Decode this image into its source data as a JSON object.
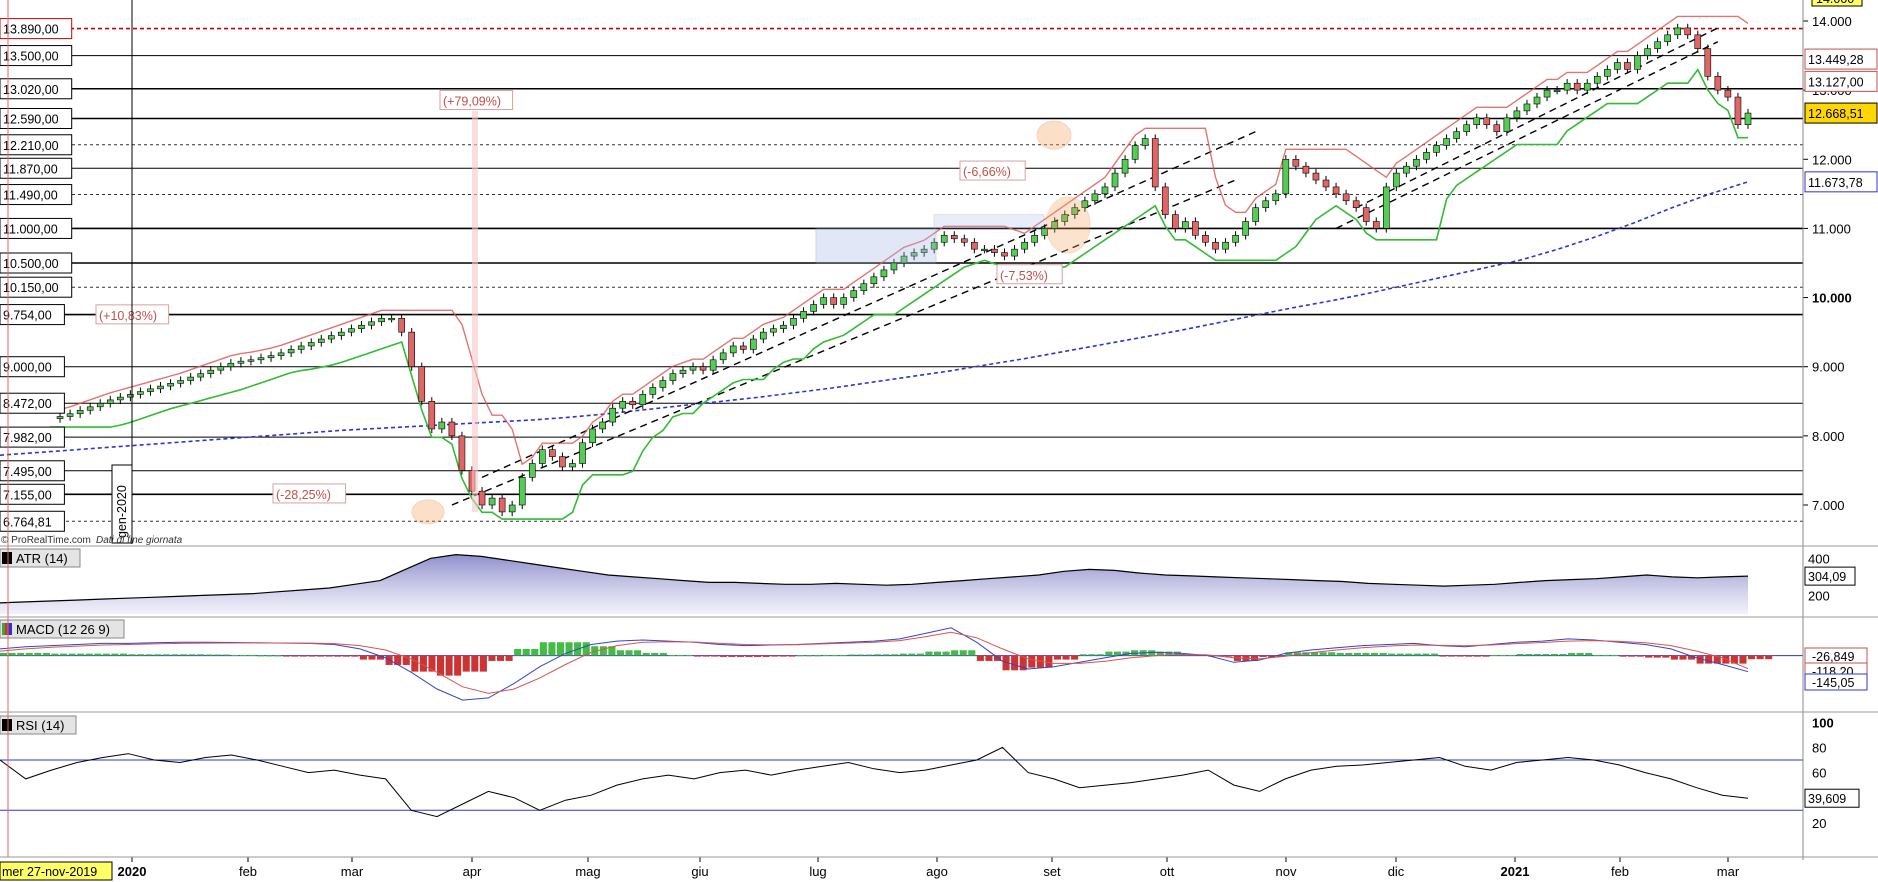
{
  "watermark": "© ProRealTime.com",
  "data_type": "Dati di fine giornata",
  "chart_data": {
    "type": "candlestick",
    "time_range": [
      "2019-11-27",
      "2021-03-05"
    ],
    "x_tick_labels": [
      "2020",
      "feb",
      "mar",
      "apr",
      "mag",
      "giu",
      "lug",
      "ago",
      "set",
      "ott",
      "nov",
      "dic",
      "2021",
      "feb",
      "mar"
    ],
    "x_tick_bold": [
      "2020",
      "2021"
    ],
    "cursor_label": "mer 27-nov-2019",
    "vertical_marker": "gen-2020",
    "price_axis": {
      "ylim": [
        6600,
        14100
      ],
      "tick_labels": [
        "14.000",
        "13.000",
        "12.000",
        "11.000",
        "10.000",
        "9.000",
        "8.000",
        "7.000"
      ],
      "tick_values": [
        14000,
        13000,
        12000,
        11000,
        10000,
        9000,
        8000,
        7000
      ],
      "top_clipped_label": "14.000"
    },
    "levels": [
      {
        "label": "13.890,00",
        "value": 13890,
        "style": "red-dashed"
      },
      {
        "label": "13.500,00",
        "value": 13500,
        "style": "solid-thin"
      },
      {
        "label": "13.020,00",
        "value": 13020,
        "style": "solid"
      },
      {
        "label": "12.590,00",
        "value": 12590,
        "style": "solid"
      },
      {
        "label": "12.210,00",
        "value": 12210,
        "style": "dashed"
      },
      {
        "label": "11.870,00",
        "value": 11870,
        "style": "solid-thin"
      },
      {
        "label": "11.490,00",
        "value": 11490,
        "style": "dashed"
      },
      {
        "label": "11.000,00",
        "value": 11000,
        "style": "solid"
      },
      {
        "label": "10.500,00",
        "value": 10500,
        "style": "solid"
      },
      {
        "label": "10.150,00",
        "value": 10150,
        "style": "dashed"
      },
      {
        "label": "9.754,00",
        "value": 9754,
        "style": "solid"
      },
      {
        "label": "9.000,00",
        "value": 9000,
        "style": "solid-thin"
      },
      {
        "label": "8.472,00",
        "value": 8472,
        "style": "solid-thin"
      },
      {
        "label": "7.982,00",
        "value": 7982,
        "style": "solid-thin"
      },
      {
        "label": "7.495,00",
        "value": 7495,
        "style": "solid-thin"
      },
      {
        "label": "7.155,00",
        "value": 7155,
        "style": "solid"
      },
      {
        "label": "6.764,81",
        "value": 6764.81,
        "style": "dashed"
      }
    ],
    "right_value_tags": [
      {
        "label": "13.449,28",
        "value": 13449.28,
        "color": "#c0504d"
      },
      {
        "label": "13.127,00",
        "value": 13127,
        "color": "#c0504d"
      },
      {
        "label": "12.668,51",
        "value": 12668.51,
        "color": "#000000",
        "bg": "#ffd700"
      },
      {
        "label": "11.673,78",
        "value": 11673.78,
        "color": "#3333cc"
      }
    ],
    "annotations": [
      "(+79,09%)",
      "(+10,83%)",
      "(-28,25%)",
      "(-6,66%)",
      "(-7,53%)"
    ],
    "close_series": [
      8250,
      8280,
      8320,
      8370,
      8420,
      8470,
      8520,
      8560,
      8600,
      8640,
      8680,
      8720,
      8760,
      8800,
      8850,
      8900,
      8950,
      9000,
      9050,
      9080,
      9100,
      9130,
      9160,
      9200,
      9250,
      9300,
      9350,
      9400,
      9450,
      9500,
      9550,
      9600,
      9650,
      9700,
      9700,
      9500,
      9000,
      8500,
      8100,
      8200,
      8000,
      7500,
      7200,
      7000,
      7100,
      6900,
      7000,
      7400,
      7600,
      7800,
      7700,
      7550,
      7600,
      7900,
      8100,
      8200,
      8400,
      8500,
      8450,
      8600,
      8700,
      8800,
      8900,
      8950,
      9000,
      8950,
      9100,
      9200,
      9300,
      9250,
      9400,
      9500,
      9550,
      9600,
      9700,
      9800,
      9900,
      10000,
      9900,
      10000,
      10100,
      10200,
      10300,
      10400,
      10500,
      10600,
      10650,
      10700,
      10800,
      10900,
      10850,
      10800,
      10700,
      10700,
      10650,
      10600,
      10700,
      10800,
      10900,
      11000,
      11100,
      11200,
      11300,
      11400,
      11500,
      11600,
      11800,
      12000,
      12200,
      12300,
      11600,
      11200,
      11000,
      11100,
      10900,
      10800,
      10700,
      10800,
      10900,
      11100,
      11300,
      11400,
      11500,
      12000,
      11900,
      11800,
      11700,
      11600,
      11500,
      11400,
      11300,
      11100,
      11000,
      11600,
      11800,
      11900,
      12000,
      12100,
      12200,
      12300,
      12400,
      12500,
      12600,
      12500,
      12400,
      12600,
      12700,
      12800,
      12900,
      13000,
      13000,
      13100,
      13000,
      13100,
      13200,
      13300,
      13400,
      13300,
      13500,
      13600,
      13700,
      13800,
      13900,
      13800,
      13600,
      13200,
      13000,
      12900,
      12500,
      12668.51
    ],
    "ema_series_label": "dashed-blue long moving average",
    "ema_values": [
      7720,
      7760,
      7800,
      7840,
      7880,
      7920,
      7960,
      8000,
      8040,
      8080,
      8110,
      8140,
      8170,
      8200,
      8230,
      8270,
      8320,
      8380,
      8440,
      8500,
      8560,
      8630,
      8700,
      8780,
      8860,
      8940,
      9030,
      9120,
      9220,
      9320,
      9420,
      9520,
      9630,
      9740,
      9850,
      9950,
      10060,
      10180,
      10300,
      10420,
      10540,
      10700,
      10880,
      11080,
      11300,
      11500,
      11673.78
    ]
  },
  "atr": {
    "title": "ATR (14)",
    "ticks": [
      "400",
      "200"
    ],
    "tick_values": [
      400,
      200
    ],
    "ylim": [
      100,
      450
    ],
    "value_label": "304,09",
    "values": [
      160,
      165,
      170,
      175,
      180,
      185,
      190,
      195,
      200,
      205,
      210,
      220,
      230,
      240,
      260,
      280,
      340,
      400,
      420,
      410,
      390,
      370,
      350,
      330,
      310,
      300,
      290,
      280,
      270,
      270,
      265,
      260,
      260,
      265,
      260,
      255,
      260,
      270,
      280,
      290,
      300,
      310,
      330,
      340,
      335,
      320,
      310,
      305,
      300,
      295,
      290,
      285,
      280,
      275,
      265,
      260,
      255,
      250,
      255,
      260,
      270,
      280,
      285,
      290,
      300,
      310,
      300,
      295,
      300,
      304.09
    ]
  },
  "macd": {
    "title": "MACD (12 26 9)",
    "ylim": [
      -480,
      320
    ],
    "value_labels": [
      {
        "label": "-26,849",
        "value": -26.849,
        "color": "#c0504d"
      },
      {
        "label": "-118,20",
        "value": -118.2,
        "color": "#c0504d"
      },
      {
        "label": "-145,05",
        "value": -145.05,
        "color": "#3333cc"
      }
    ],
    "macd_values": [
      60,
      80,
      90,
      100,
      110,
      110,
      115,
      120,
      120,
      118,
      115,
      112,
      110,
      100,
      60,
      -20,
      -150,
      -300,
      -400,
      -380,
      -250,
      -100,
      20,
      100,
      130,
      140,
      130,
      120,
      100,
      90,
      95,
      100,
      110,
      120,
      130,
      150,
      200,
      250,
      120,
      -50,
      -120,
      -100,
      -60,
      -20,
      20,
      30,
      20,
      0,
      -60,
      -40,
      20,
      50,
      70,
      90,
      100,
      110,
      90,
      80,
      100,
      120,
      130,
      150,
      140,
      120,
      100,
      60,
      -20,
      -80,
      -145.05
    ],
    "signal_values": [
      40,
      60,
      75,
      85,
      95,
      100,
      105,
      110,
      112,
      113,
      114,
      113,
      112,
      108,
      90,
      50,
      -30,
      -150,
      -280,
      -340,
      -300,
      -200,
      -80,
      30,
      90,
      120,
      125,
      122,
      110,
      100,
      97,
      98,
      105,
      112,
      120,
      135,
      170,
      210,
      160,
      60,
      -30,
      -70,
      -70,
      -50,
      -20,
      0,
      10,
      5,
      -20,
      -30,
      -5,
      25,
      50,
      70,
      85,
      95,
      92,
      88,
      95,
      108,
      118,
      130,
      135,
      128,
      115,
      90,
      40,
      -20,
      -118.2
    ]
  },
  "rsi": {
    "title": "RSI (14)",
    "ticks": [
      "100",
      "80",
      "60",
      "40",
      "20"
    ],
    "tick_values": [
      100,
      80,
      60,
      40,
      20
    ],
    "ylim": [
      0,
      105
    ],
    "overbought": 70,
    "oversold": 30,
    "value_label": "39,609",
    "values": [
      70,
      55,
      62,
      68,
      72,
      75,
      70,
      68,
      72,
      74,
      70,
      65,
      60,
      62,
      58,
      55,
      30,
      25,
      35,
      45,
      40,
      30,
      38,
      42,
      50,
      55,
      58,
      55,
      60,
      62,
      58,
      62,
      65,
      68,
      63,
      60,
      62,
      66,
      70,
      80,
      60,
      55,
      48,
      50,
      52,
      55,
      58,
      62,
      50,
      45,
      55,
      62,
      65,
      66,
      68,
      70,
      72,
      65,
      62,
      68,
      70,
      72,
      70,
      66,
      60,
      55,
      48,
      42,
      39.609
    ]
  }
}
